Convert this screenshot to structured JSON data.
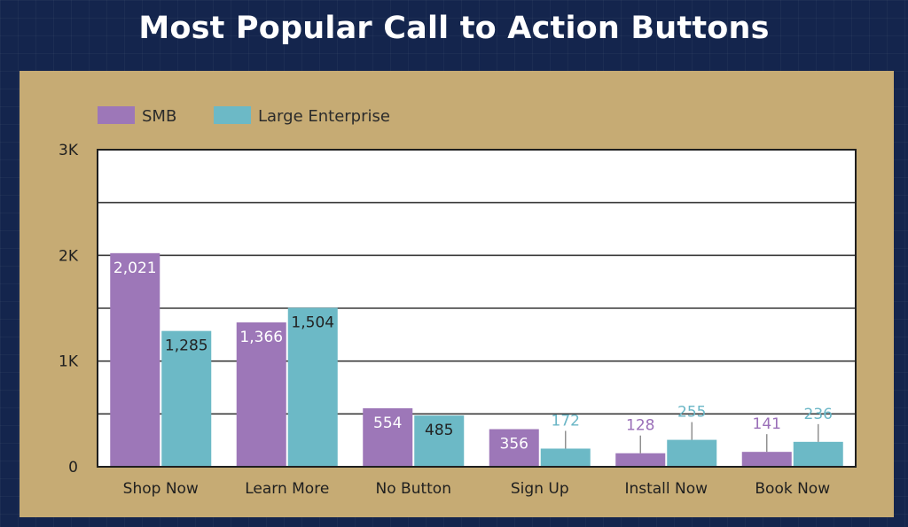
{
  "title": "Most Popular Call to Action Buttons",
  "colors": {
    "SMB": "#9d77b8",
    "Large Enterprise": "#6cb9c6",
    "panel": "#c6ab74",
    "background": "#14254d"
  },
  "chart_data": {
    "type": "bar",
    "categories": [
      "Shop Now",
      "Learn More",
      "No Button",
      "Sign Up",
      "Install Now",
      "Book Now"
    ],
    "series": [
      {
        "name": "SMB",
        "values": [
          2021,
          1366,
          554,
          356,
          128,
          141
        ]
      },
      {
        "name": "Large Enterprise",
        "values": [
          1285,
          1504,
          485,
          172,
          255,
          236
        ]
      }
    ],
    "data_labels": {
      "SMB": [
        "2,021",
        "1,366",
        "554",
        "356",
        "128",
        "141"
      ],
      "Large Enterprise": [
        "1,285",
        "1,504",
        "485",
        "172",
        "255",
        "236"
      ]
    },
    "yticks": [
      0,
      1000,
      2000,
      3000
    ],
    "ytick_labels": [
      "0",
      "1K",
      "2K",
      "3K"
    ],
    "ylim": [
      0,
      3000
    ],
    "grid": true,
    "legend": "top-left"
  }
}
